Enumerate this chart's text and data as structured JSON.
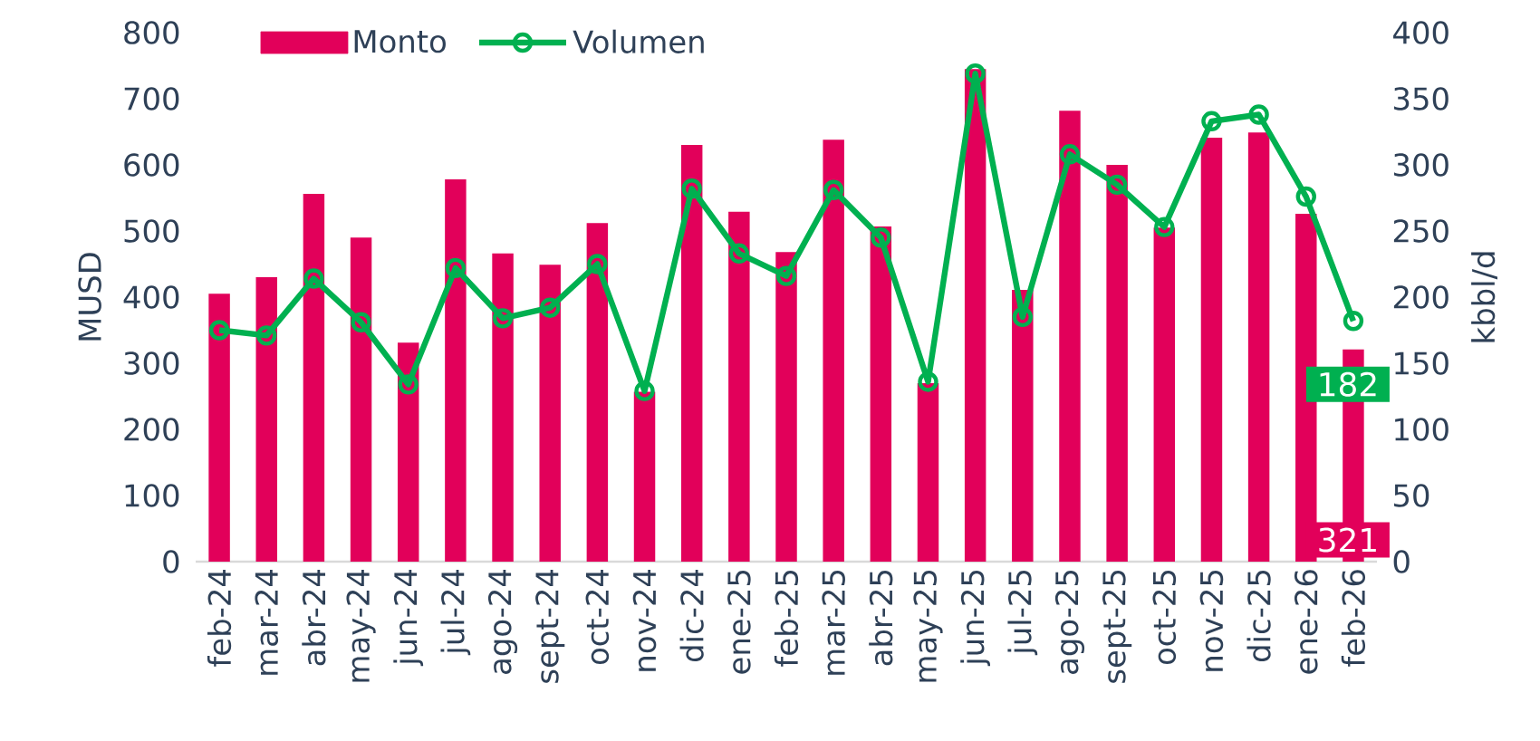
{
  "chart_data": {
    "type": "bar",
    "categories": [
      "feb-24",
      "mar-24",
      "abr-24",
      "may-24",
      "jun-24",
      "jul-24",
      "ago-24",
      "sept-24",
      "oct-24",
      "nov-24",
      "dic-24",
      "ene-25",
      "feb-25",
      "mar-25",
      "abr-25",
      "may-25",
      "jun-25",
      "jul-25",
      "ago-25",
      "sept-25",
      "oct-25",
      "nov-25",
      "dic-25",
      "ene-26",
      "feb-26"
    ],
    "series": [
      {
        "name": "Monto",
        "color": "#e2005a",
        "values": [
          405,
          430,
          556,
          490,
          331,
          578,
          466,
          449,
          512,
          257,
          630,
          529,
          468,
          638,
          507,
          270,
          745,
          411,
          682,
          600,
          505,
          641,
          649,
          526,
          321
        ],
        "value_labels": [
          null,
          null,
          null,
          null,
          null,
          null,
          null,
          null,
          null,
          null,
          null,
          null,
          null,
          null,
          null,
          null,
          null,
          null,
          null,
          null,
          null,
          null,
          null,
          null,
          "321"
        ]
      },
      {
        "name": "Volumen",
        "type": "line",
        "axis": "y2",
        "color": "#00b050",
        "values": [
          175,
          171,
          214,
          181,
          134,
          222,
          184,
          192,
          225,
          129,
          282,
          233,
          216,
          281,
          245,
          136,
          369,
          185,
          308,
          285,
          253,
          333,
          338,
          276,
          182
        ],
        "value_labels": [
          null,
          null,
          null,
          null,
          null,
          null,
          null,
          null,
          null,
          null,
          null,
          null,
          null,
          null,
          null,
          null,
          null,
          null,
          null,
          null,
          null,
          null,
          null,
          null,
          "182"
        ]
      }
    ],
    "ylabel": "MUSD",
    "y2label": "kbbl/d",
    "ylim": [
      0,
      800
    ],
    "yticks": [
      0,
      100,
      200,
      300,
      400,
      500,
      600,
      700,
      800
    ],
    "y2lim": [
      0,
      400
    ],
    "y2ticks": [
      0,
      50,
      100,
      150,
      200,
      250,
      300,
      350,
      400
    ],
    "legend": "top left",
    "marker": "circle"
  }
}
